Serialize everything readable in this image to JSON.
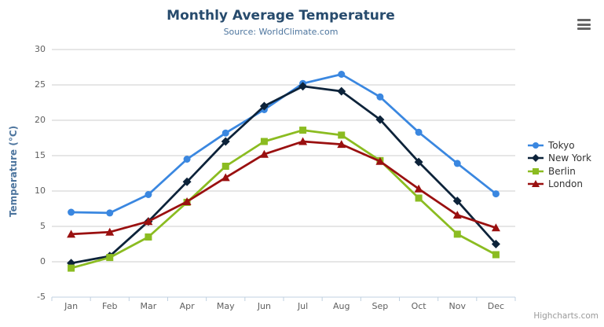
{
  "chart": {
    "export_menu_icon": "hamburger-menu",
    "credits_label": "Highcharts.com"
  },
  "chart_data": {
    "type": "line",
    "title": "Monthly Average Temperature",
    "subtitle": "Source: WorldClimate.com",
    "xlabel": "",
    "ylabel": "Temperature (°C)",
    "categories": [
      "Jan",
      "Feb",
      "Mar",
      "Apr",
      "May",
      "Jun",
      "Jul",
      "Aug",
      "Sep",
      "Oct",
      "Nov",
      "Dec"
    ],
    "ylim": [
      -5,
      30
    ],
    "yticks": [
      -5,
      0,
      5,
      10,
      15,
      20,
      25,
      30
    ],
    "grid": true,
    "legend_position": "right",
    "series": [
      {
        "name": "Tokyo",
        "color": "#3a87e0",
        "marker": "circle",
        "values": [
          7.0,
          6.9,
          9.5,
          14.5,
          18.2,
          21.5,
          25.2,
          26.5,
          23.3,
          18.3,
          13.9,
          9.6
        ]
      },
      {
        "name": "New York",
        "color": "#0d233a",
        "marker": "diamond",
        "values": [
          -0.2,
          0.8,
          5.7,
          11.3,
          17.0,
          22.0,
          24.8,
          24.1,
          20.1,
          14.1,
          8.6,
          2.5
        ]
      },
      {
        "name": "Berlin",
        "color": "#8bbc21",
        "marker": "square",
        "values": [
          -0.9,
          0.6,
          3.5,
          8.4,
          13.5,
          17.0,
          18.6,
          17.9,
          14.3,
          9.0,
          3.9,
          1.0
        ]
      },
      {
        "name": "London",
        "color": "#9a1010",
        "marker": "triangle",
        "values": [
          3.9,
          4.2,
          5.7,
          8.5,
          11.9,
          15.2,
          17.0,
          16.6,
          14.2,
          10.3,
          6.6,
          4.8
        ]
      }
    ],
    "colors": {
      "grid": "#cccccc",
      "axis": "#c0d0e0",
      "title": "#274b6d",
      "subtitle": "#4d759e",
      "axis_label": "#606060",
      "legend_text": "#333333",
      "credits": "#999999",
      "menu_icon": "#666666"
    }
  }
}
